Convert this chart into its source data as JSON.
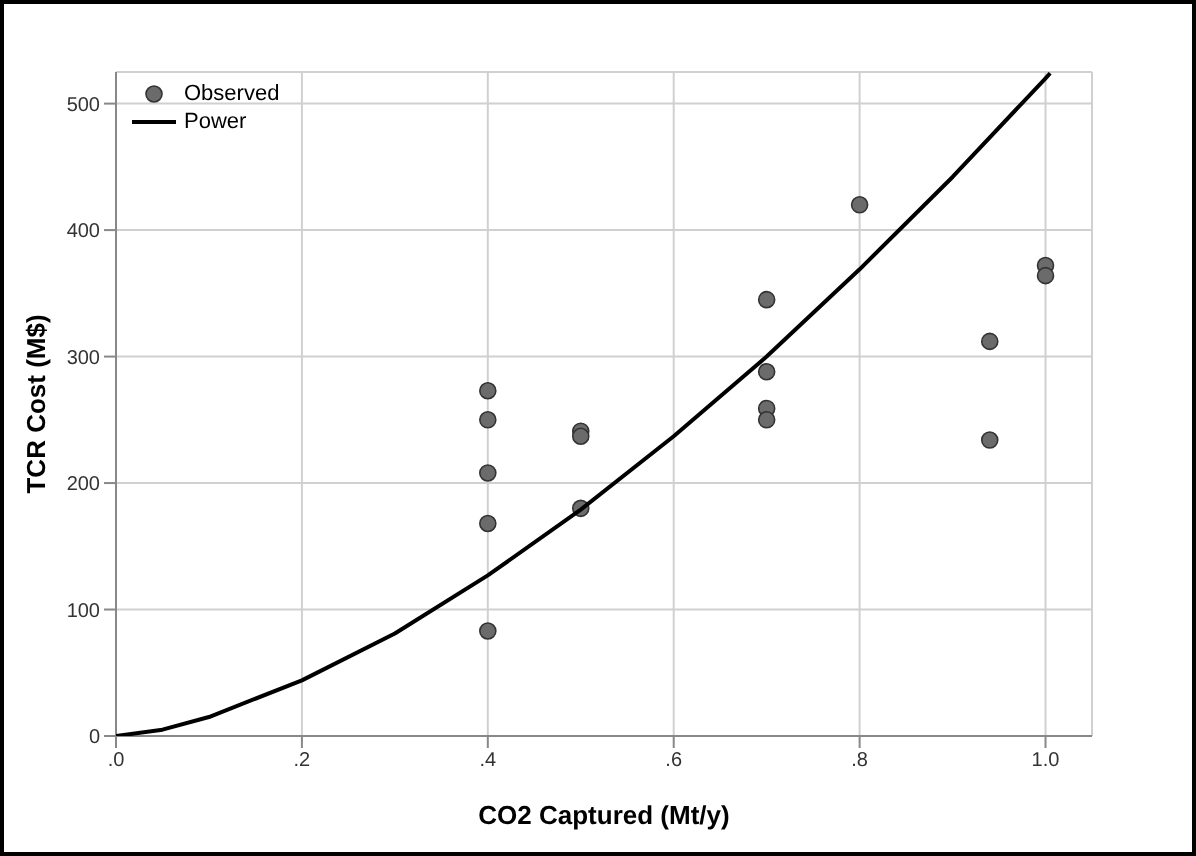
{
  "chart_data": {
    "type": "scatter",
    "xlabel": "CO2 Captured (Mt/y)",
    "ylabel": "TCR Cost (M$)",
    "xlim": [
      0,
      1.05
    ],
    "xticks": [
      {
        "value": 0,
        "label": ".0"
      },
      {
        "value": 0.2,
        "label": ".2"
      },
      {
        "value": 0.4,
        "label": ".4"
      },
      {
        "value": 0.6,
        "label": ".6"
      },
      {
        "value": 0.8,
        "label": ".8"
      },
      {
        "value": 1,
        "label": "1.0"
      }
    ],
    "ylim": [
      0,
      525
    ],
    "yticks": [
      0,
      100,
      200,
      300,
      400,
      500
    ],
    "grid": true,
    "legend": "top left",
    "series": [
      {
        "name": "Observed",
        "type": "scatter",
        "marker": "circle",
        "color": "#6b6b6b",
        "x": [
          0.4,
          0.4,
          0.4,
          0.4,
          0.4,
          0.5,
          0.5,
          0.5,
          0.7,
          0.7,
          0.7,
          0.7,
          0.8,
          0.94,
          0.94,
          1.0,
          1.0
        ],
        "values": [
          273,
          250,
          208,
          168,
          83,
          241,
          237,
          180,
          345,
          288,
          259,
          250,
          420,
          312,
          234,
          372,
          364
        ]
      },
      {
        "name": "Power",
        "type": "line",
        "marker": "none",
        "color": "#000000",
        "x": [
          0,
          0.05,
          0.1,
          0.2,
          0.3,
          0.4,
          0.5,
          0.6,
          0.7,
          0.8,
          0.9,
          1.0,
          1.005
        ],
        "values": [
          0,
          5,
          15,
          44,
          81,
          127,
          179,
          237,
          300,
          369,
          442,
          520,
          524
        ]
      }
    ]
  }
}
